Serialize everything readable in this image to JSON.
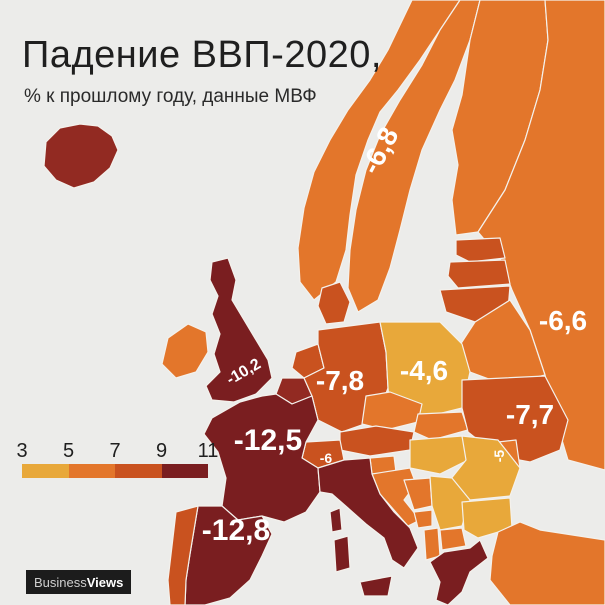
{
  "header": {
    "title": "Падение ВВП-2020,",
    "subtitle": "% к прошлому году, данные МВФ"
  },
  "legend": {
    "ticks": [
      "3",
      "5",
      "7",
      "9",
      "11"
    ],
    "colors": [
      "#e8a83a",
      "#e3762b",
      "#c9521f",
      "#7a1e20"
    ]
  },
  "labels": {
    "sweden": "-6,8",
    "belarus": "-6,6",
    "uk": "-10,2",
    "germany": "-7,8",
    "poland": "-4,6",
    "ukraine": "-7,7",
    "france": "-12,5",
    "switzerland": "-6",
    "romania": "-5",
    "spain": "-12,8"
  },
  "brand": {
    "part1": "Business",
    "part2": "Views"
  },
  "colors": {
    "background": "#ececea",
    "tier_light": "#e8a83a",
    "tier_orange": "#e3762b",
    "tier_dark_orange": "#c9521f",
    "tier_red": "#922a22",
    "tier_dark_red": "#7a1e20"
  }
}
